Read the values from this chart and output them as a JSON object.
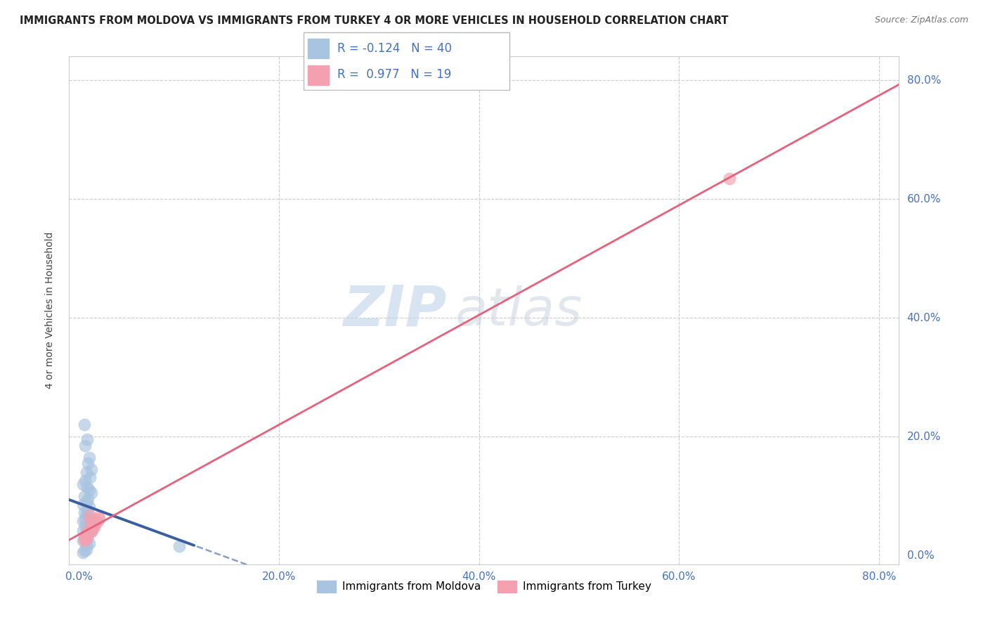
{
  "title": "IMMIGRANTS FROM MOLDOVA VS IMMIGRANTS FROM TURKEY 4 OR MORE VEHICLES IN HOUSEHOLD CORRELATION CHART",
  "source": "Source: ZipAtlas.com",
  "ylabel": "4 or more Vehicles in Household",
  "R_moldova": -0.124,
  "N_moldova": 40,
  "R_turkey": 0.977,
  "N_turkey": 19,
  "moldova_color": "#a8c4e0",
  "turkey_color": "#f4a0b0",
  "moldova_line_color": "#3a5fa0",
  "turkey_line_color": "#e8607a",
  "legend_moldova": "Immigrants from Moldova",
  "legend_turkey": "Immigrants from Turkey",
  "moldova_x": [
    0.005,
    0.008,
    0.006,
    0.01,
    0.009,
    0.012,
    0.007,
    0.011,
    0.006,
    0.004,
    0.008,
    0.01,
    0.012,
    0.005,
    0.009,
    0.007,
    0.004,
    0.01,
    0.008,
    0.005,
    0.007,
    0.009,
    0.006,
    0.012,
    0.004,
    0.008,
    0.006,
    0.01,
    0.004,
    0.012,
    0.007,
    0.005,
    0.008,
    0.004,
    0.01,
    0.007,
    0.1,
    0.007,
    0.005,
    0.004
  ],
  "moldova_y": [
    0.22,
    0.195,
    0.185,
    0.165,
    0.155,
    0.145,
    0.14,
    0.132,
    0.125,
    0.12,
    0.115,
    0.11,
    0.105,
    0.1,
    0.095,
    0.09,
    0.085,
    0.082,
    0.078,
    0.072,
    0.07,
    0.068,
    0.062,
    0.06,
    0.058,
    0.052,
    0.05,
    0.048,
    0.042,
    0.04,
    0.038,
    0.03,
    0.028,
    0.025,
    0.02,
    0.018,
    0.015,
    0.01,
    0.008,
    0.005
  ],
  "turkey_x": [
    0.005,
    0.008,
    0.012,
    0.015,
    0.018,
    0.02,
    0.01,
    0.006,
    0.014,
    0.007,
    0.011,
    0.013,
    0.016,
    0.006,
    0.019,
    0.009,
    0.014,
    0.006,
    0.65
  ],
  "turkey_y": [
    0.025,
    0.03,
    0.04,
    0.048,
    0.056,
    0.062,
    0.068,
    0.032,
    0.052,
    0.038,
    0.058,
    0.044,
    0.06,
    0.028,
    0.065,
    0.042,
    0.05,
    0.032,
    0.635
  ],
  "xlim": [
    -0.01,
    0.82
  ],
  "ylim": [
    -0.015,
    0.84
  ],
  "xticks": [
    0.0,
    0.2,
    0.4,
    0.6,
    0.8
  ],
  "yticks": [
    0.0,
    0.2,
    0.4,
    0.6,
    0.8
  ],
  "xtick_labels": [
    "0.0%",
    "20.0%",
    "40.0%",
    "60.0%",
    "80.0%"
  ],
  "ytick_labels": [
    "0.0%",
    "20.0%",
    "40.0%",
    "60.0%",
    "80.0%"
  ],
  "tick_color": "#4472c4",
  "title_fontsize": 10.5,
  "source_fontsize": 9,
  "axis_fontsize": 11,
  "legend_fontsize": 12
}
